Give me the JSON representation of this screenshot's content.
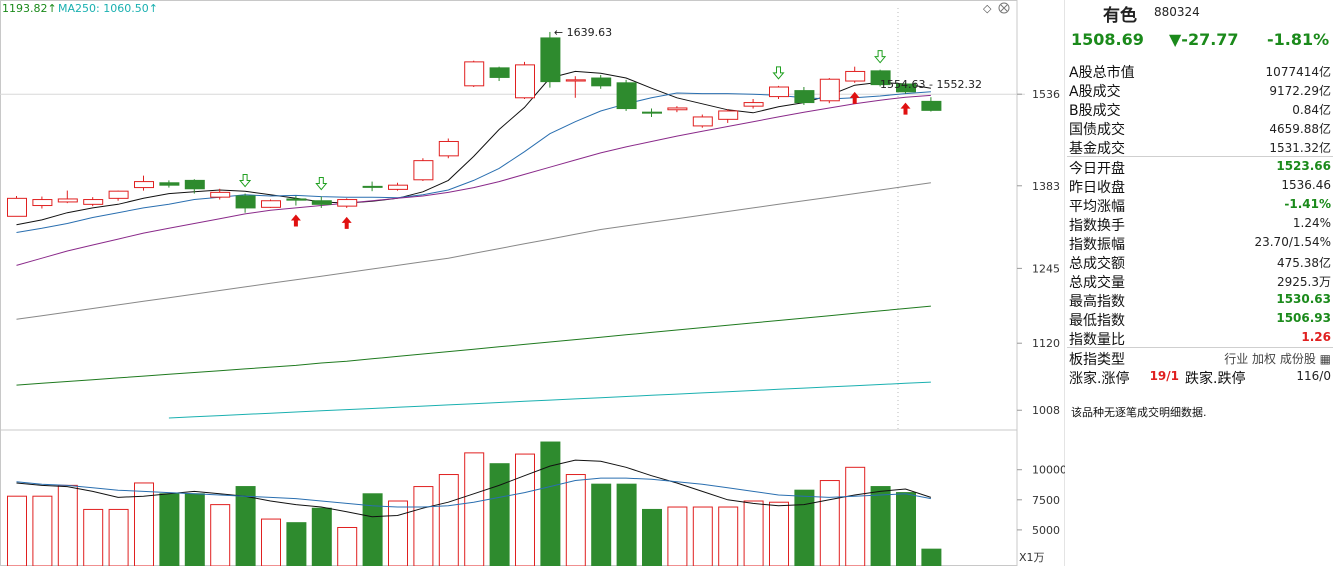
{
  "ma_legend": {
    "prev_value": "1193.82",
    "ma250_label": "MA250: 1060.50",
    "ma250_color": "#1ab0b0"
  },
  "header": {
    "name": "有色",
    "code": "880324"
  },
  "quote": {
    "price": "1508.69",
    "change": "▼-27.77",
    "pct": "-1.81%"
  },
  "stats": [
    {
      "label": "A股总市值",
      "value": "1077414亿",
      "style": "dark"
    },
    {
      "label": "A股成交",
      "value": "9172.29亿",
      "style": "dark"
    },
    {
      "label": "B股成交",
      "value": "0.84亿",
      "style": "dark"
    },
    {
      "label": "国债成交",
      "value": "4659.88亿",
      "style": "dark"
    },
    {
      "label": "基金成交",
      "value": "1531.32亿",
      "style": "dark"
    },
    {
      "label": "今日开盘",
      "value": "1523.66",
      "style": "green"
    },
    {
      "label": "昨日收盘",
      "value": "1536.46",
      "style": "dark"
    },
    {
      "label": "平均涨幅",
      "value": "-1.41%",
      "style": "green"
    },
    {
      "label": "指数换手",
      "value": "1.24%",
      "style": "dark"
    },
    {
      "label": "指数振幅",
      "value": "23.70/1.54%",
      "style": "dark"
    },
    {
      "label": "总成交额",
      "value": "475.38亿",
      "style": "dark"
    },
    {
      "label": "总成交量",
      "value": "2925.3万",
      "style": "dark"
    },
    {
      "label": "最高指数",
      "value": "1530.63",
      "style": "green"
    },
    {
      "label": "最低指数",
      "value": "1506.93",
      "style": "green"
    },
    {
      "label": "指数量比",
      "value": "1.26",
      "style": "red"
    }
  ],
  "board": {
    "label": "板指类型",
    "tags": "行业 加权 成份股",
    "icon": "grid-icon"
  },
  "updown": {
    "label1": "涨家.涨停",
    "v1": "19/1",
    "label2": "跌家.跌停",
    "v2": "116/0"
  },
  "note": "该品种无逐笔成交明细数据.",
  "colors": {
    "up": "#e02020",
    "down": "#2e8b2e",
    "ma5": "#111111",
    "ma10": "#2a6fb0",
    "ma20": "#8a2a8a",
    "ma60": "#888888",
    "ma120": "#1f7a1f",
    "ma250": "#1ab0b0"
  },
  "chart_data": {
    "type": "candlestick",
    "price_axis": {
      "ticks": [
        1536,
        1383,
        1245,
        1120,
        1008
      ],
      "ylim": [
        975,
        1680
      ]
    },
    "volume_axis": {
      "ticks": [
        10000,
        7500,
        5000
      ],
      "unit_label": "X1万",
      "ylim": [
        2000,
        13300
      ]
    },
    "annotations": [
      "1639.63",
      "1554.63 - 1552.32"
    ],
    "candles": [
      {
        "o": 1332,
        "c": 1362,
        "h": 1366,
        "l": 1332,
        "v": 7800
      },
      {
        "o": 1350,
        "c": 1360,
        "h": 1365,
        "l": 1345,
        "v": 7800
      },
      {
        "o": 1356,
        "c": 1361,
        "h": 1375,
        "l": 1354,
        "v": 8700
      },
      {
        "o": 1352,
        "c": 1360,
        "h": 1364,
        "l": 1349,
        "v": 6700
      },
      {
        "o": 1362,
        "c": 1374,
        "h": 1375,
        "l": 1358,
        "v": 6700
      },
      {
        "o": 1380,
        "c": 1390,
        "h": 1400,
        "l": 1375,
        "v": 8900
      },
      {
        "o": 1388,
        "c": 1384,
        "h": 1392,
        "l": 1380,
        "v": 8000
      },
      {
        "o": 1392,
        "c": 1378,
        "h": 1394,
        "l": 1370,
        "v": 8000
      },
      {
        "o": 1364,
        "c": 1372,
        "h": 1378,
        "l": 1360,
        "v": 7100
      },
      {
        "o": 1366,
        "c": 1346,
        "h": 1370,
        "l": 1338,
        "v": 8600
      },
      {
        "o": 1347,
        "c": 1358,
        "h": 1360,
        "l": 1346,
        "v": 5900
      },
      {
        "o": 1361,
        "c": 1359,
        "h": 1366,
        "l": 1350,
        "v": 5600
      },
      {
        "o": 1358,
        "c": 1352,
        "h": 1365,
        "l": 1346,
        "v": 6800
      },
      {
        "o": 1349,
        "c": 1360,
        "h": 1362,
        "l": 1346,
        "v": 5200
      },
      {
        "o": 1382,
        "c": 1381,
        "h": 1390,
        "l": 1374,
        "v": 8000
      },
      {
        "o": 1377,
        "c": 1384,
        "h": 1388,
        "l": 1375,
        "v": 7400
      },
      {
        "o": 1393,
        "c": 1425,
        "h": 1429,
        "l": 1391,
        "v": 8600
      },
      {
        "o": 1433,
        "c": 1457,
        "h": 1462,
        "l": 1429,
        "v": 9600
      },
      {
        "o": 1550,
        "c": 1590,
        "h": 1592,
        "l": 1548,
        "v": 11400
      },
      {
        "o": 1580,
        "c": 1564,
        "h": 1582,
        "l": 1558,
        "v": 10500
      },
      {
        "o": 1530,
        "c": 1585,
        "h": 1590,
        "l": 1528,
        "v": 11300
      },
      {
        "o": 1630,
        "c": 1557,
        "h": 1640,
        "l": 1547,
        "v": 12300
      },
      {
        "o": 1558,
        "c": 1560,
        "h": 1566,
        "l": 1530,
        "v": 9600
      },
      {
        "o": 1563,
        "c": 1550,
        "h": 1568,
        "l": 1545,
        "v": 8800
      },
      {
        "o": 1555,
        "c": 1512,
        "h": 1560,
        "l": 1508,
        "v": 8800
      },
      {
        "o": 1506,
        "c": 1505,
        "h": 1512,
        "l": 1498,
        "v": 6700
      },
      {
        "o": 1510,
        "c": 1513,
        "h": 1516,
        "l": 1506,
        "v": 6900
      },
      {
        "o": 1483,
        "c": 1498,
        "h": 1502,
        "l": 1480,
        "v": 6900
      },
      {
        "o": 1494,
        "c": 1508,
        "h": 1511,
        "l": 1488,
        "v": 6900
      },
      {
        "o": 1516,
        "c": 1522,
        "h": 1528,
        "l": 1512,
        "v": 7400
      },
      {
        "o": 1532,
        "c": 1548,
        "h": 1550,
        "l": 1528,
        "v": 7300
      },
      {
        "o": 1542,
        "c": 1522,
        "h": 1548,
        "l": 1518,
        "v": 8300
      },
      {
        "o": 1525,
        "c": 1561,
        "h": 1563,
        "l": 1521,
        "v": 9100
      },
      {
        "o": 1558,
        "c": 1574,
        "h": 1582,
        "l": 1555,
        "v": 10200
      },
      {
        "o": 1575,
        "c": 1552,
        "h": 1577,
        "l": 1549,
        "v": 8600
      },
      {
        "o": 1553,
        "c": 1540,
        "h": 1555,
        "l": 1537,
        "v": 8100
      },
      {
        "o": 1524,
        "c": 1509,
        "h": 1531,
        "l": 1507,
        "v": 3400
      }
    ],
    "ma_lines": {
      "ma5": [
        1318,
        1326,
        1338,
        1346,
        1352,
        1362,
        1370,
        1373,
        1376,
        1374,
        1368,
        1362,
        1356,
        1354,
        1357,
        1362,
        1373,
        1392,
        1432,
        1477,
        1514,
        1563,
        1574,
        1571,
        1563,
        1546,
        1530,
        1520,
        1510,
        1505,
        1515,
        1522,
        1534,
        1551,
        1556,
        1553,
        1546
      ],
      "ma10": [
        1305,
        1312,
        1320,
        1330,
        1338,
        1346,
        1352,
        1360,
        1364,
        1368,
        1366,
        1367,
        1365,
        1364,
        1364,
        1363,
        1368,
        1376,
        1392,
        1412,
        1440,
        1470,
        1490,
        1508,
        1520,
        1530,
        1538,
        1537,
        1537,
        1536,
        1534,
        1530,
        1528,
        1530,
        1533,
        1537,
        1540
      ],
      "ma20": [
        1250,
        1262,
        1274,
        1284,
        1294,
        1304,
        1312,
        1320,
        1328,
        1336,
        1342,
        1346,
        1350,
        1354,
        1358,
        1362,
        1366,
        1372,
        1380,
        1390,
        1402,
        1414,
        1426,
        1438,
        1448,
        1457,
        1466,
        1474,
        1482,
        1490,
        1498,
        1506,
        1513,
        1520,
        1526,
        1531,
        1534
      ],
      "ma60": [
        1160,
        1166,
        1172,
        1178,
        1184,
        1190,
        1196,
        1202,
        1208,
        1214,
        1220,
        1226,
        1232,
        1238,
        1244,
        1250,
        1256,
        1262,
        1270,
        1278,
        1286,
        1294,
        1302,
        1310,
        1316,
        1322,
        1328,
        1334,
        1340,
        1346,
        1352,
        1358,
        1364,
        1370,
        1376,
        1382,
        1388
      ],
      "ma120": [
        1050,
        1053,
        1056,
        1059,
        1062,
        1065,
        1068,
        1071,
        1074,
        1077,
        1080,
        1083,
        1087,
        1090,
        1094,
        1098,
        1102,
        1106,
        1110,
        1114,
        1118,
        1122,
        1126,
        1130,
        1134,
        1138,
        1142,
        1146,
        1150,
        1154,
        1158,
        1162,
        1166,
        1170,
        1174,
        1178,
        1182
      ],
      "ma250": [
        null,
        null,
        null,
        null,
        null,
        null,
        995,
        997,
        999,
        1001,
        1003,
        1005,
        1007,
        1009,
        1011,
        1013,
        1015,
        1017,
        1019,
        1021,
        1023,
        1025,
        1027,
        1029,
        1031,
        1033,
        1035,
        1037,
        1039,
        1041,
        1043,
        1045,
        1047,
        1049,
        1051,
        1053,
        1055
      ]
    },
    "vol_ma": {
      "ma5": [
        8900,
        8700,
        8600,
        8200,
        7700,
        7800,
        8000,
        8200,
        8000,
        7800,
        7400,
        7100,
        6900,
        6500,
        6100,
        6200,
        6800,
        7300,
        8000,
        8700,
        9500,
        10300,
        10800,
        10700,
        10200,
        9500,
        8900,
        8200,
        7500,
        7200,
        7000,
        7100,
        7500,
        7900,
        8200,
        8400,
        7700
      ],
      "ma10": [
        9000,
        8800,
        8700,
        8500,
        8300,
        8200,
        8100,
        8000,
        7900,
        7800,
        7700,
        7600,
        7400,
        7200,
        7000,
        6900,
        6900,
        7000,
        7300,
        7700,
        8100,
        8600,
        9100,
        9300,
        9300,
        9200,
        9000,
        8800,
        8500,
        8200,
        7900,
        7800,
        7700,
        7800,
        7900,
        8000,
        7600
      ]
    },
    "signals": {
      "up_arrows": [
        11,
        13,
        33,
        35
      ],
      "down_arrows": [
        9,
        12,
        30,
        34
      ]
    }
  }
}
